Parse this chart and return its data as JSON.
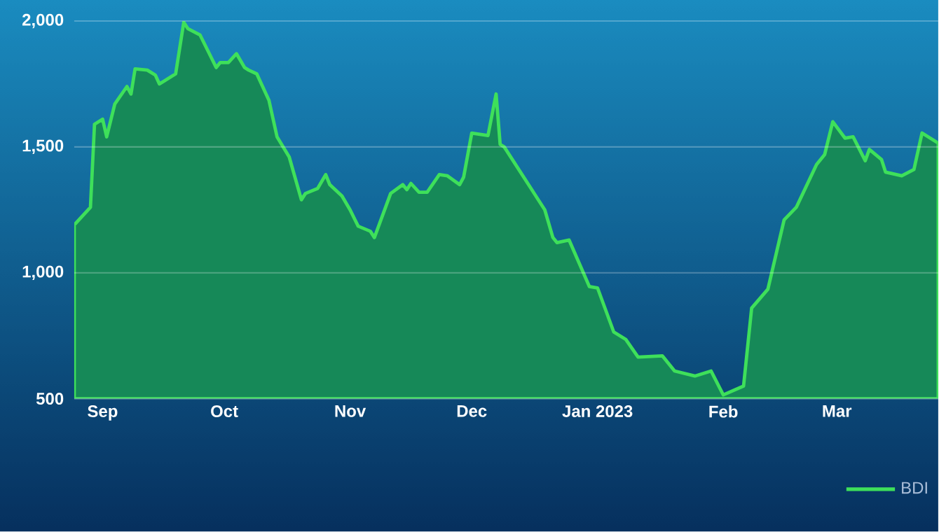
{
  "chart_data": {
    "type": "area",
    "x": [
      "2022-08-25",
      "2022-08-29",
      "2022-08-30",
      "2022-09-01",
      "2022-09-02",
      "2022-09-04",
      "2022-09-07",
      "2022-09-08",
      "2022-09-09",
      "2022-09-12",
      "2022-09-14",
      "2022-09-15",
      "2022-09-19",
      "2022-09-21",
      "2022-09-22",
      "2022-09-25",
      "2022-09-29",
      "2022-09-30",
      "2022-10-02",
      "2022-10-04",
      "2022-10-06",
      "2022-10-07",
      "2022-10-09",
      "2022-10-12",
      "2022-10-14",
      "2022-10-17",
      "2022-10-20",
      "2022-10-21",
      "2022-10-24",
      "2022-10-26",
      "2022-10-27",
      "2022-10-30",
      "2022-11-01",
      "2022-11-03",
      "2022-11-06",
      "2022-11-07",
      "2022-11-11",
      "2022-11-14",
      "2022-11-15",
      "2022-11-16",
      "2022-11-18",
      "2022-11-20",
      "2022-11-23",
      "2022-11-25",
      "2022-11-28",
      "2022-11-29",
      "2022-12-01",
      "2022-12-05",
      "2022-12-07",
      "2022-12-08",
      "2022-12-09",
      "2022-12-19",
      "2022-12-21",
      "2022-12-22",
      "2022-12-25",
      "2022-12-30",
      "2023-01-01",
      "2023-01-05",
      "2023-01-08",
      "2023-01-11",
      "2023-01-17",
      "2023-01-20",
      "2023-01-25",
      "2023-01-29",
      "2023-02-01",
      "2023-02-06",
      "2023-02-08",
      "2023-02-12",
      "2023-02-16",
      "2023-02-19",
      "2023-02-24",
      "2023-02-26",
      "2023-02-28",
      "2023-03-03",
      "2023-03-05",
      "2023-03-08",
      "2023-03-09",
      "2023-03-12",
      "2023-03-13",
      "2023-03-17",
      "2023-03-20",
      "2023-03-22",
      "2023-03-26"
    ],
    "series": [
      {
        "name": "BDI",
        "color": "#3ee05a",
        "values": [
          1190,
          1260,
          1590,
          1610,
          1540,
          1670,
          1740,
          1710,
          1810,
          1805,
          1785,
          1750,
          1790,
          1995,
          1970,
          1945,
          1815,
          1835,
          1835,
          1870,
          1815,
          1805,
          1790,
          1685,
          1540,
          1460,
          1290,
          1315,
          1335,
          1390,
          1350,
          1305,
          1250,
          1185,
          1165,
          1140,
          1315,
          1350,
          1330,
          1355,
          1320,
          1320,
          1390,
          1385,
          1350,
          1380,
          1555,
          1545,
          1710,
          1510,
          1500,
          1250,
          1140,
          1120,
          1130,
          945,
          940,
          765,
          735,
          665,
          670,
          610,
          590,
          610,
          515,
          550,
          860,
          935,
          1210,
          1260,
          1430,
          1470,
          1600,
          1535,
          1540,
          1445,
          1490,
          1450,
          1400,
          1385,
          1410,
          1555,
          1515
        ]
      }
    ],
    "xlim": [
      "2022-08-25",
      "2023-03-26"
    ],
    "xticks": [
      {
        "value": "2022-09-01",
        "label": "Sep"
      },
      {
        "value": "2022-10-01",
        "label": "Oct"
      },
      {
        "value": "2022-11-01",
        "label": "Nov"
      },
      {
        "value": "2022-12-01",
        "label": "Dec"
      },
      {
        "value": "2023-01-01",
        "label": "Jan 2023"
      },
      {
        "value": "2023-02-01",
        "label": "Feb"
      },
      {
        "value": "2023-03-01",
        "label": "Mar"
      }
    ],
    "ylim": [
      500,
      2000
    ],
    "yticks": [
      {
        "value": 500,
        "label": "500"
      },
      {
        "value": 1000,
        "label": "1,000"
      },
      {
        "value": 1500,
        "label": "1,500"
      },
      {
        "value": 2000,
        "label": "2,000"
      }
    ],
    "grid": "y",
    "legend": "bottom right"
  }
}
